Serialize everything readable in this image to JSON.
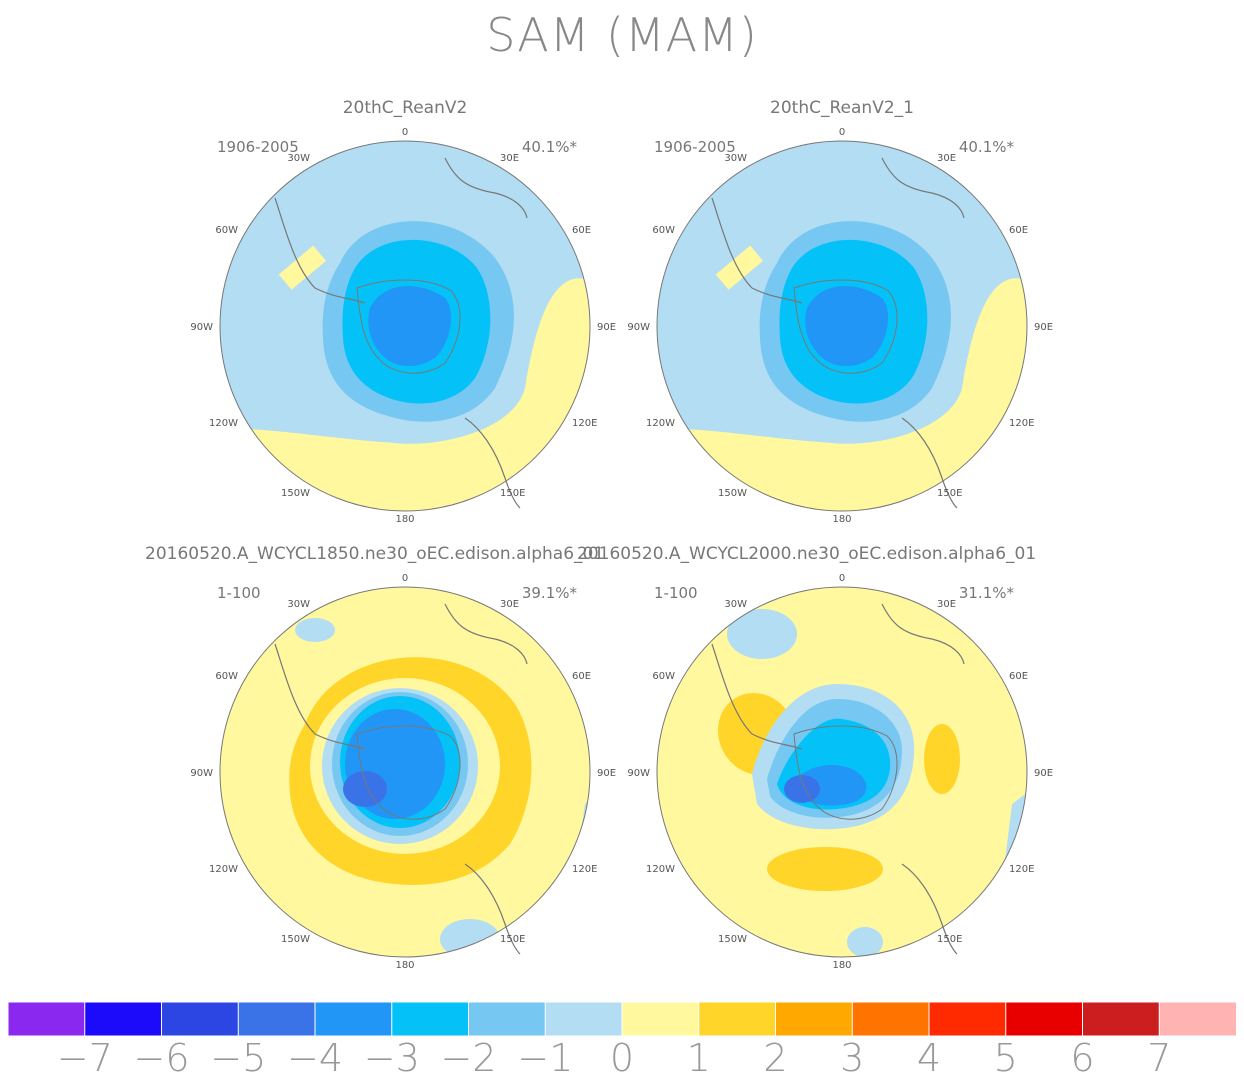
{
  "title": "SAM (MAM)",
  "panels": [
    {
      "title": "20thC_ReanV2",
      "period": "1906-2005",
      "variance": "40.1%*"
    },
    {
      "title": "20thC_ReanV2_1",
      "period": "1906-2005",
      "variance": "40.1%*"
    },
    {
      "title": "20160520.A_WCYCL1850.ne30_oEC.edison.alpha6_01",
      "period": "1-100",
      "variance": "39.1%*"
    },
    {
      "title": "20160520.A_WCYCL2000.ne30_oEC.edison.alpha6_01",
      "period": "1-100",
      "variance": "31.1%*"
    }
  ],
  "map_labels": {
    "top": "0",
    "bottom": "180",
    "w30": "30W",
    "e30": "30E",
    "w60": "60W",
    "e60": "60E",
    "w90": "90W",
    "e90": "90E",
    "w120": "120W",
    "e120": "120E",
    "w150": "150W",
    "e150": "150E"
  },
  "colorbar": {
    "colors": [
      "#8a28f0",
      "#1b0bfa",
      "#2c46e4",
      "#3a73e8",
      "#2196f7",
      "#04c2f7",
      "#76c7f2",
      "#b3ddf2",
      "#fff89e",
      "#ffd52a",
      "#ffa800",
      "#ff7300",
      "#ff2a00",
      "#e80000",
      "#cc1e1e",
      "#ffb3b3"
    ],
    "labels": [
      "-7",
      "-6",
      "-5",
      "-4",
      "-3",
      "-2",
      "-1",
      "0",
      "1",
      "2",
      "3",
      "4",
      "5",
      "6",
      "7"
    ]
  }
}
